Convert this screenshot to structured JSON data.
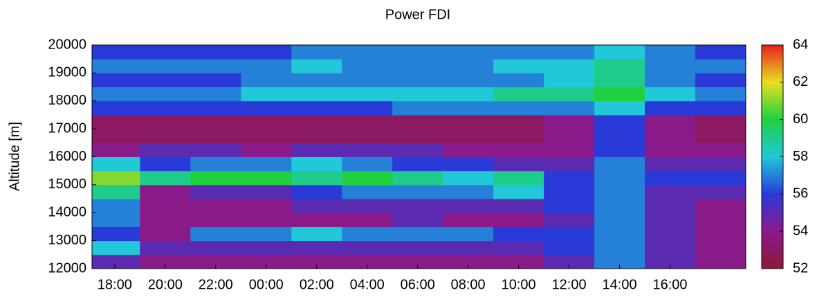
{
  "chart_data": {
    "type": "heatmap",
    "title": "Power FDI",
    "ylabel": "Altitude [m]",
    "xlim": [
      17.1,
      43
    ],
    "ylim": [
      12000,
      20000
    ],
    "xticks": [
      {
        "value": 18,
        "label": "18:00"
      },
      {
        "value": 20,
        "label": "20:00"
      },
      {
        "value": 22,
        "label": "22:00"
      },
      {
        "value": 24,
        "label": "00:00"
      },
      {
        "value": 26,
        "label": "02:00"
      },
      {
        "value": 28,
        "label": "04:00"
      },
      {
        "value": 30,
        "label": "06:00"
      },
      {
        "value": 32,
        "label": "08:00"
      },
      {
        "value": 34,
        "label": "10:00"
      },
      {
        "value": 36,
        "label": "12:00"
      },
      {
        "value": 38,
        "label": "14:00"
      },
      {
        "value": 40,
        "label": "16:00"
      }
    ],
    "yticks": [
      12000,
      13000,
      14000,
      15000,
      16000,
      17000,
      18000,
      19000,
      20000
    ],
    "x_edges": [
      17.1,
      19,
      21,
      23,
      25,
      27,
      29,
      31,
      33,
      35,
      37,
      39,
      41,
      43
    ],
    "y_edges": [
      12000,
      12500,
      13000,
      13500,
      14000,
      14500,
      15000,
      15500,
      16000,
      16500,
      17000,
      17500,
      18000,
      18500,
      19000,
      19500,
      20000
    ],
    "z": [
      [
        55,
        54,
        54,
        54,
        54,
        54,
        54,
        54,
        54,
        55,
        57,
        55,
        54
      ],
      [
        58,
        55,
        55,
        55,
        55,
        55,
        55,
        55,
        55,
        56,
        57,
        55,
        54
      ],
      [
        56,
        54,
        57,
        57,
        58,
        57,
        57,
        57,
        56,
        56,
        57,
        55,
        54
      ],
      [
        57,
        54,
        54,
        54,
        54,
        54,
        55,
        54,
        54,
        55,
        57,
        55,
        54
      ],
      [
        57,
        54,
        54,
        54,
        55,
        55,
        55,
        55,
        55,
        56,
        57,
        55,
        54
      ],
      [
        59,
        54,
        55,
        55,
        56,
        57,
        57,
        57,
        58,
        56,
        57,
        55,
        55
      ],
      [
        61,
        59,
        60,
        60,
        59,
        60,
        59,
        58,
        59,
        56,
        57,
        56,
        56
      ],
      [
        58,
        56,
        57,
        57,
        58,
        57,
        56,
        56,
        55,
        55,
        57,
        55,
        55
      ],
      [
        54,
        55,
        55,
        54,
        55,
        55,
        55,
        54,
        54,
        54,
        56,
        54,
        54
      ],
      [
        53,
        53,
        53,
        53,
        53,
        53,
        53,
        53,
        53,
        54,
        56,
        54,
        53
      ],
      [
        53,
        53,
        53,
        53,
        53,
        53,
        53,
        53,
        53,
        54,
        56,
        54,
        53
      ],
      [
        56,
        56,
        56,
        56,
        56,
        56,
        57,
        57,
        57,
        57,
        58,
        56,
        56
      ],
      [
        57,
        57,
        57,
        58,
        58,
        58,
        58,
        58,
        59,
        59,
        60,
        58,
        57
      ],
      [
        56,
        56,
        56,
        57,
        57,
        57,
        57,
        57,
        57,
        58,
        59,
        57,
        56
      ],
      [
        57,
        57,
        57,
        57,
        58,
        57,
        57,
        57,
        58,
        58,
        59,
        57,
        57
      ],
      [
        56,
        56,
        56,
        56,
        57,
        57,
        57,
        57,
        57,
        57,
        58,
        57,
        56
      ]
    ],
    "zlim": [
      52,
      64
    ],
    "zticks": [
      52,
      54,
      56,
      58,
      60,
      62,
      64
    ],
    "colormap": [
      "#8b1a3a",
      "#8a1a8a",
      "#2a3ad8",
      "#20c8d8",
      "#20d040",
      "#e8e020",
      "#e82020"
    ]
  }
}
